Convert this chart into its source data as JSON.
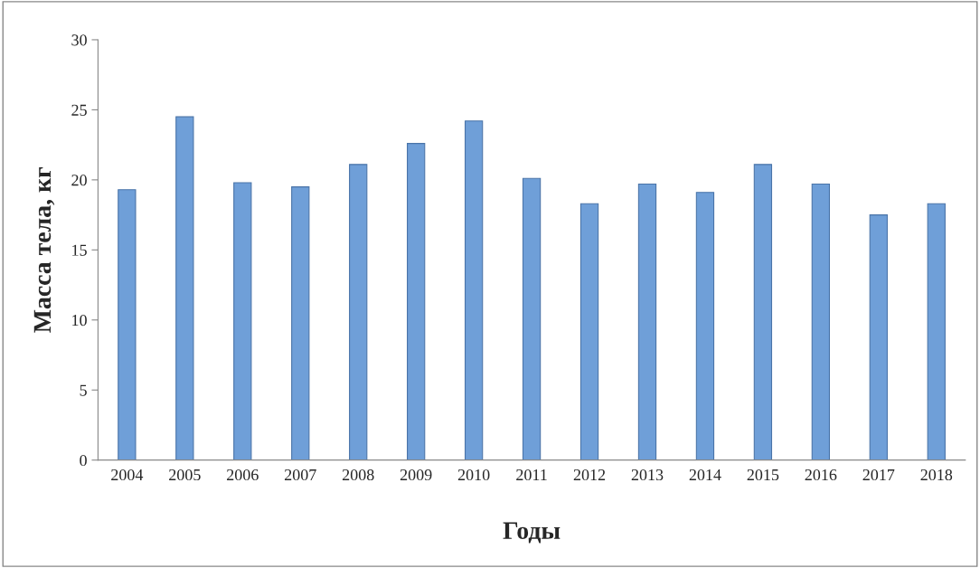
{
  "chart_data": {
    "type": "bar",
    "xlabel": "Годы",
    "ylabel": "Масса тела, кг",
    "categories": [
      "2004",
      "2005",
      "2006",
      "2007",
      "2008",
      "2009",
      "2010",
      "2011",
      "2012",
      "2013",
      "2014",
      "2015",
      "2016",
      "2017",
      "2018"
    ],
    "values": [
      19.3,
      24.5,
      19.8,
      19.5,
      21.1,
      22.6,
      24.2,
      20.1,
      18.3,
      19.7,
      19.1,
      21.1,
      19.7,
      17.5,
      18.3
    ],
    "color": "#6f9fd8",
    "ylim": [
      0,
      30
    ],
    "yticks": [
      0,
      5,
      10,
      15,
      20,
      25,
      30
    ],
    "grid": false
  }
}
